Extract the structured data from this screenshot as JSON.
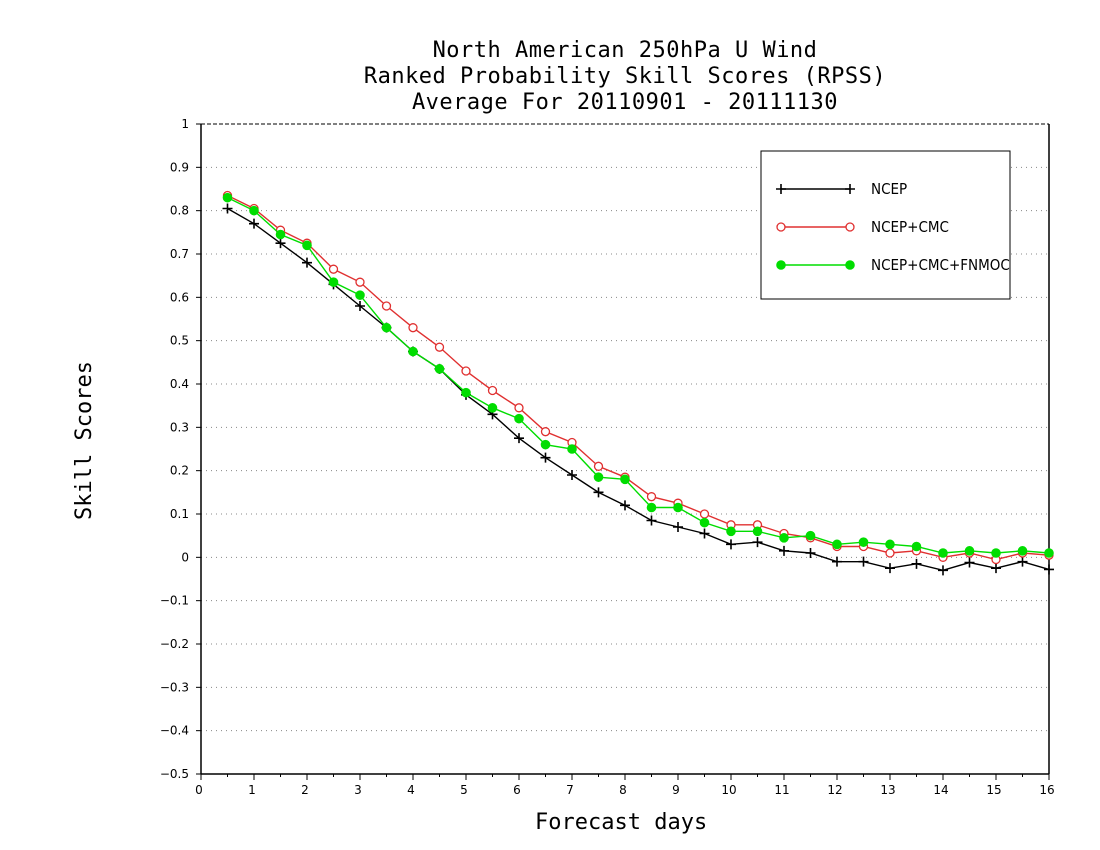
{
  "chart_data": {
    "type": "line",
    "title": [
      "North American 250hPa U Wind",
      "Ranked Probability Skill Scores (RPSS)",
      "Average For 20110901 - 20111130"
    ],
    "xlabel": "Forecast days",
    "ylabel": "Skill Scores",
    "xlim": [
      0,
      16
    ],
    "ylim": [
      -0.5,
      1
    ],
    "x_ticks": [
      "0",
      "1",
      "2",
      "3",
      "4",
      "5",
      "6",
      "7",
      "8",
      "9",
      "10",
      "11",
      "12",
      "13",
      "14",
      "15",
      "16"
    ],
    "y_ticks": [
      "−0.5",
      "−0.4",
      "−0.3",
      "−0.2",
      "−0.1",
      "0",
      "0.1",
      "0.2",
      "0.3",
      "0.4",
      "0.5",
      "0.6",
      "0.7",
      "0.8",
      "0.9",
      "1"
    ],
    "grid": "dotted horizontal",
    "legend_position": "top-right",
    "x": [
      0.5,
      1,
      1.5,
      2,
      2.5,
      3,
      3.5,
      4,
      4.5,
      5,
      5.5,
      6,
      6.5,
      7,
      7.5,
      8,
      8.5,
      9,
      9.5,
      10,
      10.5,
      11,
      11.5,
      12,
      12.5,
      13,
      13.5,
      14,
      14.5,
      15,
      15.5,
      16
    ],
    "series": [
      {
        "name": "NCEP",
        "color": "#000000",
        "marker": "plus",
        "values": [
          0.805,
          0.77,
          0.725,
          0.68,
          0.63,
          0.58,
          0.53,
          0.475,
          0.435,
          0.375,
          0.33,
          0.275,
          0.23,
          0.19,
          0.15,
          0.12,
          0.085,
          0.07,
          0.055,
          0.03,
          0.035,
          0.015,
          0.01,
          -0.01,
          -0.01,
          -0.025,
          -0.015,
          -0.03,
          -0.012,
          -0.025,
          -0.01,
          -0.028
        ]
      },
      {
        "name": "NCEP+CMC",
        "color": "#e03030",
        "marker": "open-circle",
        "values": [
          0.835,
          0.805,
          0.755,
          0.725,
          0.665,
          0.635,
          0.58,
          0.53,
          0.485,
          0.43,
          0.385,
          0.345,
          0.29,
          0.265,
          0.21,
          0.185,
          0.14,
          0.125,
          0.1,
          0.075,
          0.075,
          0.055,
          0.045,
          0.025,
          0.025,
          0.01,
          0.015,
          0.0,
          0.01,
          -0.005,
          0.01,
          0.005
        ]
      },
      {
        "name": "NCEP+CMC+FNMOC",
        "color": "#00dd00",
        "marker": "filled-circle",
        "values": [
          0.83,
          0.8,
          0.745,
          0.72,
          0.635,
          0.605,
          0.53,
          0.475,
          0.435,
          0.38,
          0.345,
          0.32,
          0.26,
          0.25,
          0.185,
          0.18,
          0.115,
          0.115,
          0.08,
          0.06,
          0.06,
          0.045,
          0.05,
          0.03,
          0.035,
          0.03,
          0.025,
          0.01,
          0.015,
          0.01,
          0.015,
          0.01
        ]
      }
    ]
  }
}
